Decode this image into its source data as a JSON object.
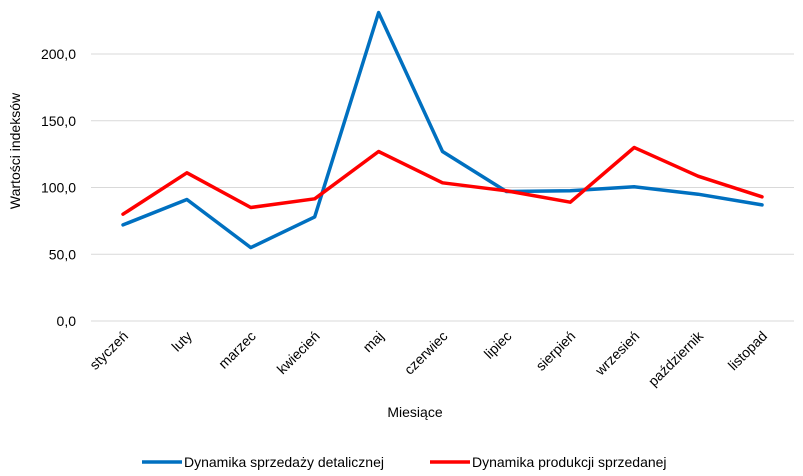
{
  "chart_data": {
    "type": "line",
    "title": "",
    "xlabel": "Miesiące",
    "ylabel": "Wartości indeksów",
    "ylim": [
      0,
      230
    ],
    "yticks": [
      "0,0",
      "50,0",
      "100,0",
      "150,0",
      "200,0"
    ],
    "grid": "horizontal",
    "legend_position": "bottom",
    "categories": [
      "styczeń",
      "luty",
      "marzec",
      "kwiecień",
      "maj",
      "czerwiec",
      "lipiec",
      "sierpień",
      "wrzesień",
      "październik",
      "listopad"
    ],
    "series": [
      {
        "name": "Dynamika sprzedaży detalicznej",
        "color": "#0070C0",
        "values": [
          72.0,
          91.0,
          55.0,
          78.0,
          231.0,
          127.0,
          97.0,
          97.5,
          100.5,
          95.0,
          87.0
        ]
      },
      {
        "name": "Dynamika produkcji sprzedanej",
        "color": "#FF0000",
        "values": [
          80.0,
          111.0,
          85.0,
          91.5,
          127.0,
          103.5,
          97.5,
          89.0,
          130.0,
          108.5,
          93.0
        ]
      }
    ]
  }
}
